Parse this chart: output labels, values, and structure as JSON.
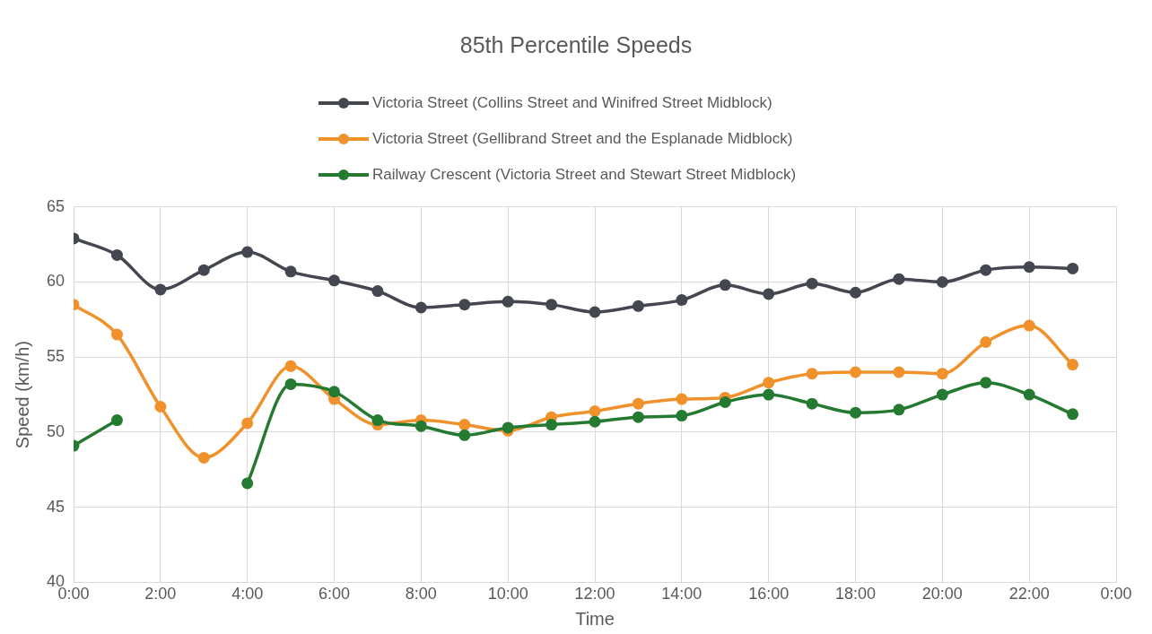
{
  "chart_data": {
    "type": "line",
    "title": "85th Percentile Speeds",
    "xlabel": "Time",
    "ylabel": "Speed (km/h)",
    "x": [
      0,
      1,
      2,
      3,
      4,
      5,
      6,
      7,
      8,
      9,
      10,
      11,
      12,
      13,
      14,
      15,
      16,
      17,
      18,
      19,
      20,
      21,
      22,
      23
    ],
    "series": [
      {
        "name": "Victoria Street (Collins Street and Winifred Street Midblock)",
        "color": "#44474f",
        "values": [
          62.9,
          61.8,
          59.5,
          60.8,
          62.0,
          60.7,
          60.1,
          59.4,
          58.3,
          58.5,
          58.7,
          58.5,
          58.0,
          58.4,
          58.8,
          59.8,
          59.2,
          59.9,
          59.3,
          60.2,
          60.0,
          60.8,
          61.0,
          60.9
        ]
      },
      {
        "name": "Victoria Street (Gellibrand Street and the Esplanade Midblock)",
        "color": "#f0912b",
        "values": [
          58.5,
          56.5,
          51.7,
          48.3,
          50.6,
          54.4,
          52.2,
          50.5,
          50.8,
          50.5,
          50.1,
          51.0,
          51.4,
          51.9,
          52.2,
          52.3,
          53.3,
          53.9,
          54.0,
          54.0,
          53.9,
          56.0,
          57.1,
          54.5
        ]
      },
      {
        "name": "Railway Crescent (Victoria Street and Stewart Street Midblock)",
        "color": "#257a32",
        "values": [
          49.1,
          50.8,
          null,
          null,
          46.6,
          53.2,
          52.7,
          50.8,
          50.4,
          49.8,
          50.3,
          50.5,
          50.7,
          51.0,
          51.1,
          52.0,
          52.5,
          51.9,
          51.3,
          51.5,
          52.5,
          53.3,
          52.5,
          51.2
        ]
      }
    ],
    "xlim": [
      0,
      24
    ],
    "xticks": [
      {
        "value": 0,
        "label": "0:00"
      },
      {
        "value": 2,
        "label": "2:00"
      },
      {
        "value": 4,
        "label": "4:00"
      },
      {
        "value": 6,
        "label": "6:00"
      },
      {
        "value": 8,
        "label": "8:00"
      },
      {
        "value": 10,
        "label": "10:00"
      },
      {
        "value": 12,
        "label": "12:00"
      },
      {
        "value": 14,
        "label": "14:00"
      },
      {
        "value": 16,
        "label": "16:00"
      },
      {
        "value": 18,
        "label": "18:00"
      },
      {
        "value": 20,
        "label": "20:00"
      },
      {
        "value": 22,
        "label": "22:00"
      },
      {
        "value": 24,
        "label": "0:00"
      }
    ],
    "ylim": [
      40,
      65
    ],
    "yticks": [
      40,
      45,
      50,
      55,
      60,
      65
    ],
    "grid": true,
    "legend": "top",
    "marker": "circle",
    "line_style": "solid"
  }
}
